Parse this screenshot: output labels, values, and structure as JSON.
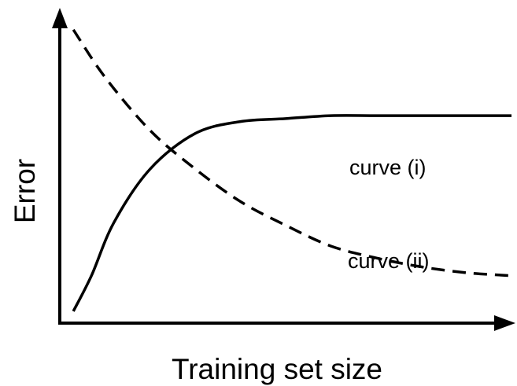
{
  "chart_data": {
    "type": "line",
    "xlabel": "Training set size",
    "ylabel": "Error",
    "xlim": [
      0,
      1
    ],
    "ylim": [
      0,
      1
    ],
    "grid": false,
    "legend": "none",
    "series": [
      {
        "name": "curve (i)",
        "style": "dashed",
        "color": "#000000",
        "x": [
          0.03,
          0.1,
          0.2,
          0.3,
          0.4,
          0.5,
          0.6,
          0.7,
          0.8,
          0.9,
          1.0
        ],
        "y": [
          0.99,
          0.83,
          0.65,
          0.52,
          0.41,
          0.33,
          0.26,
          0.22,
          0.19,
          0.17,
          0.16
        ]
      },
      {
        "name": "curve (ii)",
        "style": "solid",
        "color": "#000000",
        "x": [
          0.03,
          0.07,
          0.12,
          0.2,
          0.3,
          0.4,
          0.5,
          0.6,
          0.7,
          0.8,
          0.9,
          1.0
        ],
        "y": [
          0.04,
          0.16,
          0.34,
          0.52,
          0.64,
          0.68,
          0.69,
          0.7,
          0.7,
          0.7,
          0.7,
          0.7
        ]
      }
    ],
    "annotations": [
      "curve (i)",
      "curve (ii)"
    ]
  }
}
